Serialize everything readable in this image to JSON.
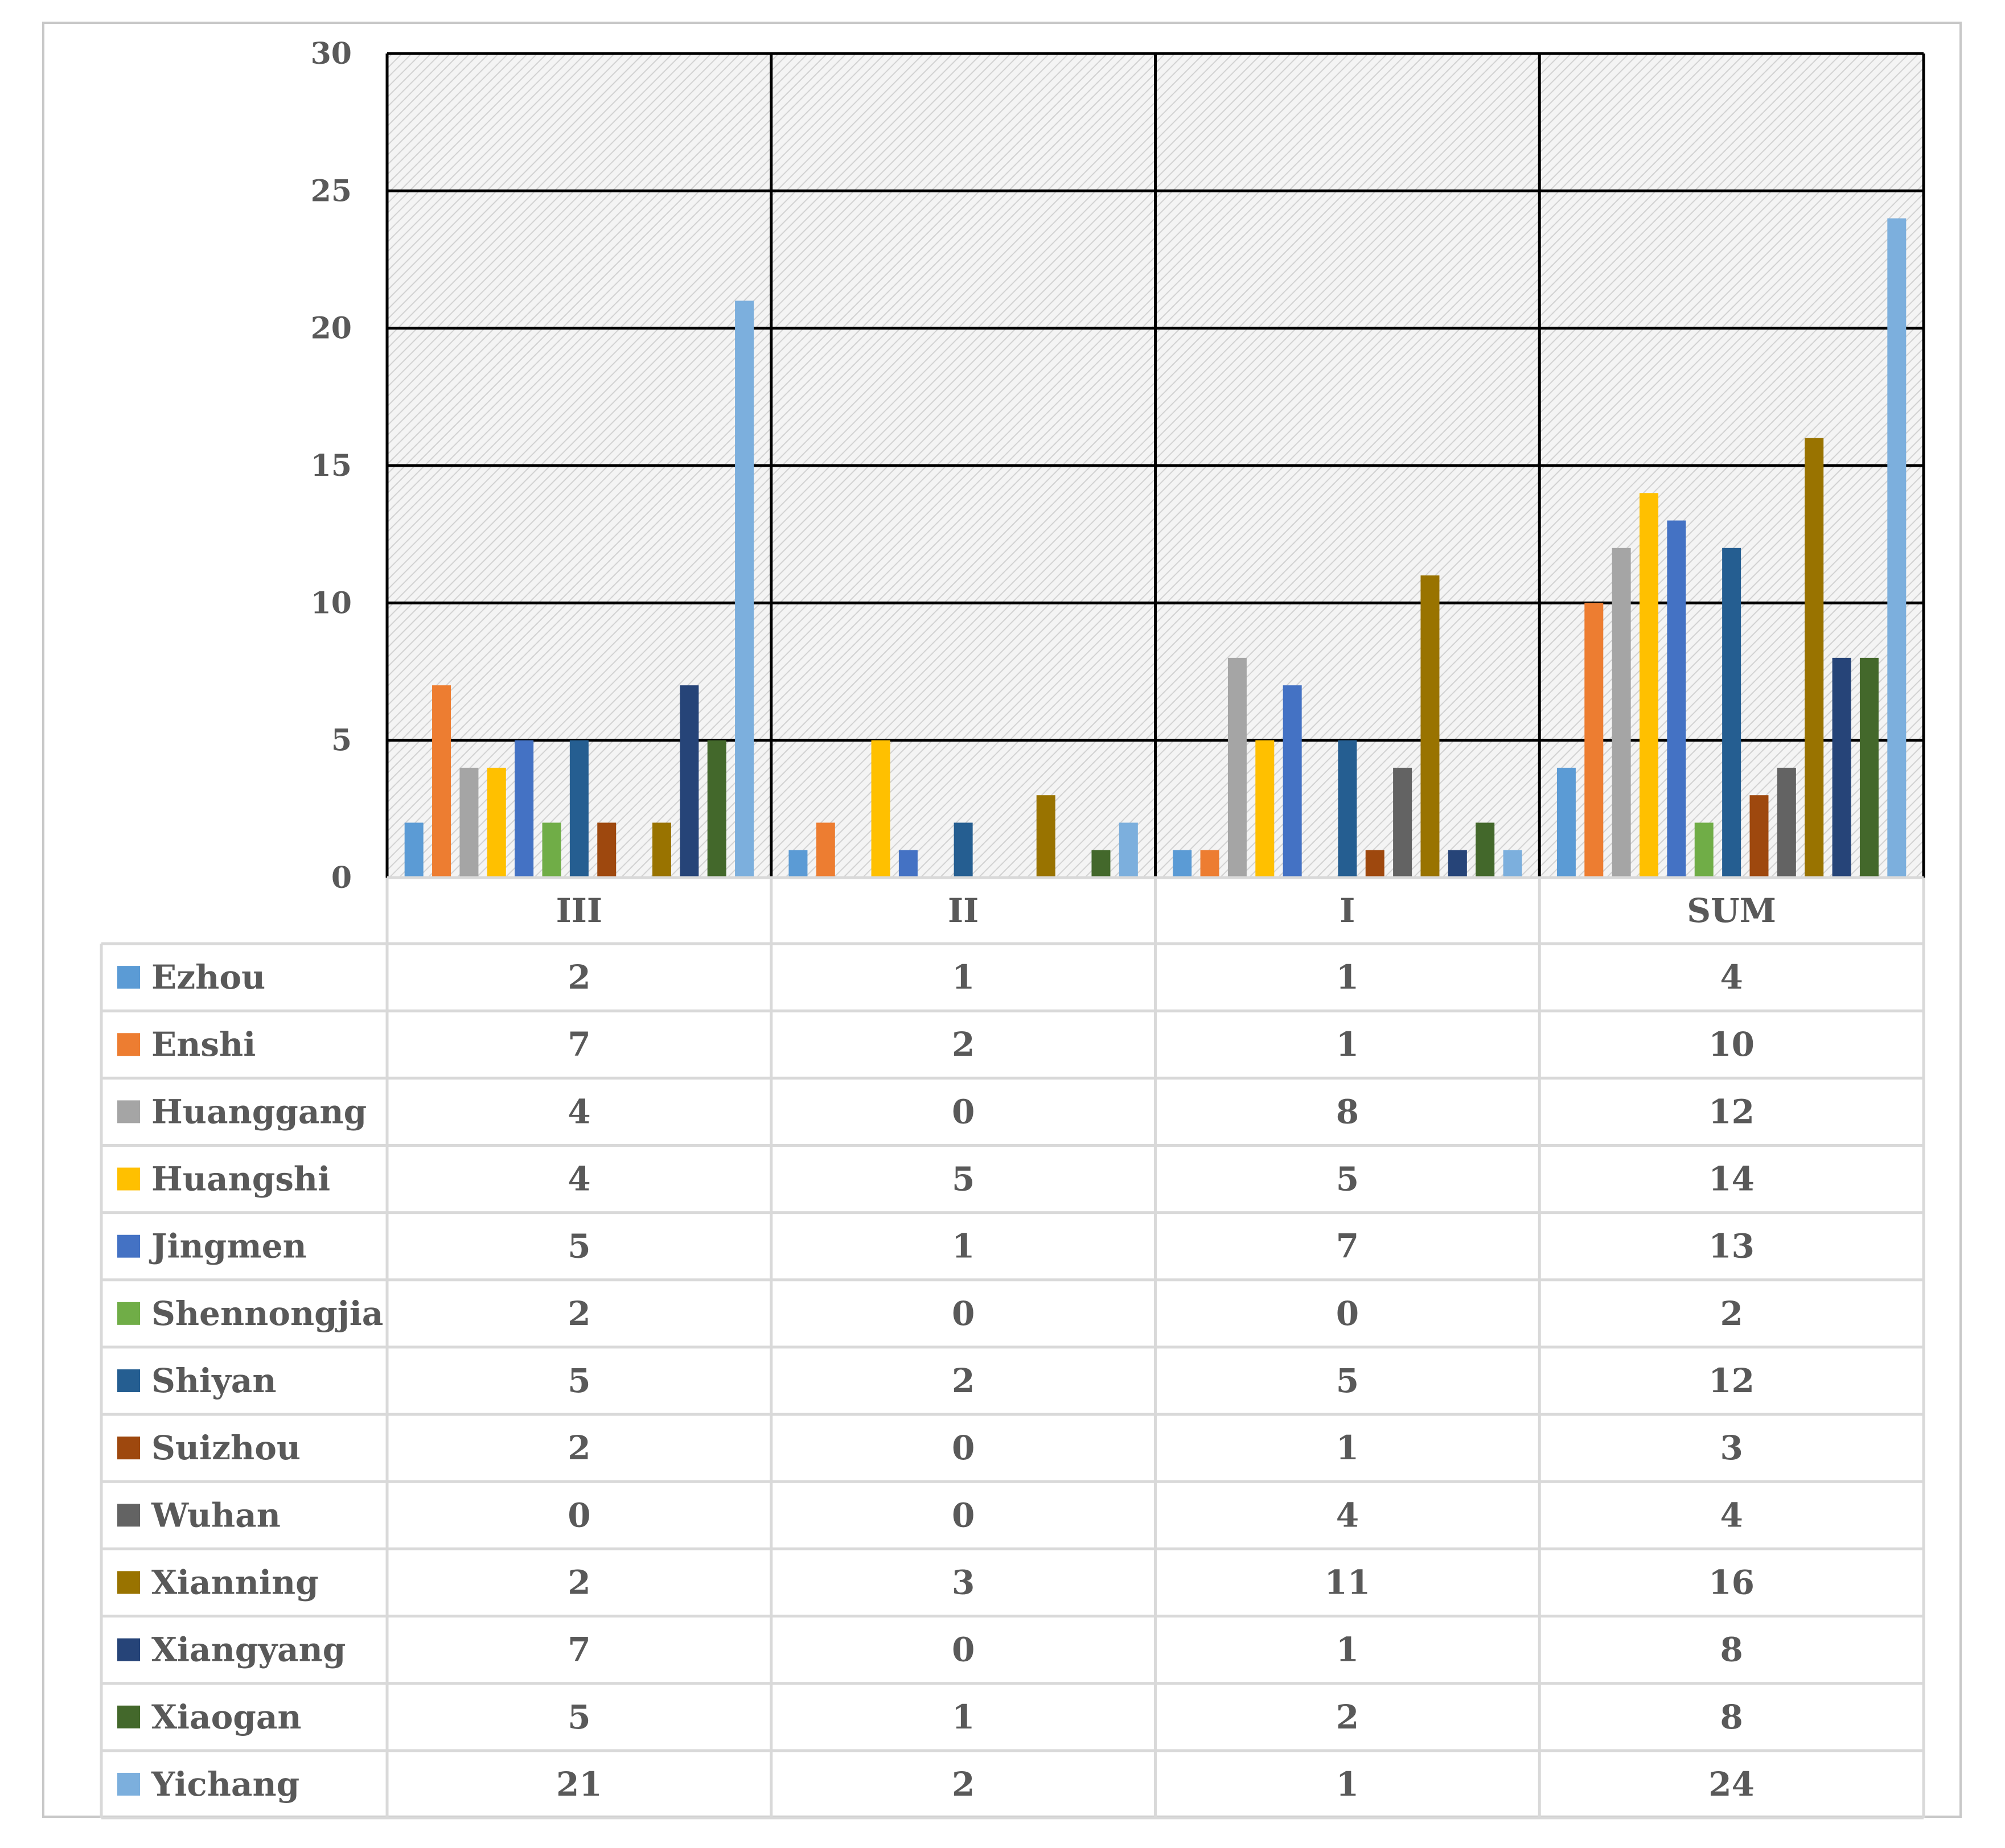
{
  "chart_data": {
    "type": "bar",
    "categories": [
      "III",
      "II",
      "I",
      "SUM"
    ],
    "ylim": [
      0,
      30
    ],
    "yticks": [
      "0",
      "5",
      "10",
      "15",
      "20",
      "25",
      "30"
    ],
    "series": [
      {
        "name": "Ezhou",
        "values": [
          2,
          1,
          1,
          4
        ],
        "color": "#5B9BD5"
      },
      {
        "name": "Enshi",
        "values": [
          7,
          2,
          1,
          10
        ],
        "color": "#ED7D31"
      },
      {
        "name": "Huanggang",
        "values": [
          4,
          0,
          8,
          12
        ],
        "color": "#A5A5A5"
      },
      {
        "name": "Huangshi",
        "values": [
          4,
          5,
          5,
          14
        ],
        "color": "#FFC000"
      },
      {
        "name": "Jingmen",
        "values": [
          5,
          1,
          7,
          13
        ],
        "color": "#4472C4"
      },
      {
        "name": "Shennongjia",
        "values": [
          2,
          0,
          0,
          2
        ],
        "color": "#70AD47"
      },
      {
        "name": "Shiyan",
        "values": [
          5,
          2,
          5,
          12
        ],
        "color": "#255E91"
      },
      {
        "name": "Suizhou",
        "values": [
          2,
          0,
          1,
          3
        ],
        "color": "#9E480E"
      },
      {
        "name": "Wuhan",
        "values": [
          0,
          0,
          4,
          4
        ],
        "color": "#636363"
      },
      {
        "name": "Xianning",
        "values": [
          2,
          3,
          11,
          16
        ],
        "color": "#997300"
      },
      {
        "name": "Xiangyang",
        "values": [
          7,
          0,
          1,
          8
        ],
        "color": "#264478"
      },
      {
        "name": "Xiaogan",
        "values": [
          5,
          1,
          2,
          8
        ],
        "color": "#43682B"
      },
      {
        "name": "Yichang",
        "values": [
          21,
          2,
          1,
          24
        ],
        "color": "#7CAFDD"
      }
    ],
    "grid": true,
    "legend": "data-table"
  }
}
